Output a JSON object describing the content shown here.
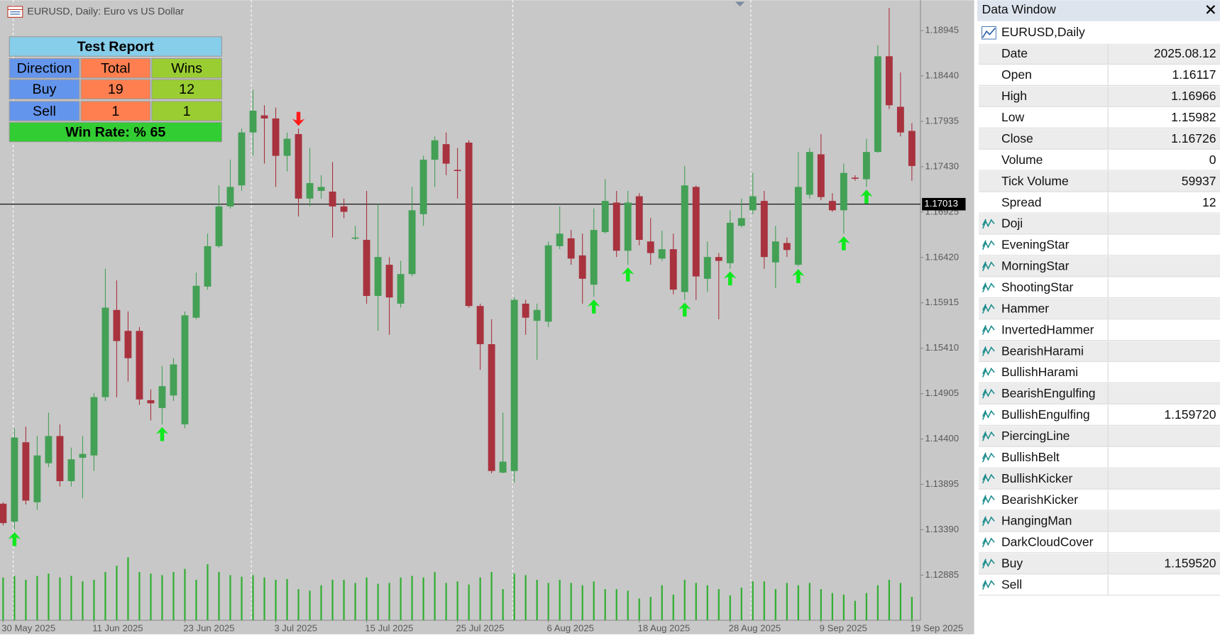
{
  "header": {
    "title": "EURUSD, Daily:  Euro vs US Dollar"
  },
  "chart_data": {
    "type": "candlestick",
    "categories": [
      "30 May 2025",
      null,
      null,
      null,
      null,
      null,
      null,
      null,
      "11 Jun 2025",
      null,
      null,
      null,
      null,
      null,
      null,
      null,
      "23 Jun 2025",
      null,
      null,
      null,
      null,
      null,
      null,
      null,
      "3 Jul 2025",
      null,
      null,
      null,
      null,
      null,
      null,
      null,
      "15 Jul 2025",
      null,
      null,
      null,
      null,
      null,
      null,
      null,
      "25 Jul 2025",
      null,
      null,
      null,
      null,
      null,
      null,
      null,
      "6 Aug 2025",
      null,
      null,
      null,
      null,
      null,
      null,
      null,
      "18 Aug 2025",
      null,
      null,
      null,
      null,
      null,
      null,
      null,
      "28 Aug 2025",
      null,
      null,
      null,
      null,
      null,
      null,
      null,
      "9 Sep 2025",
      null,
      null,
      null,
      null,
      null,
      null,
      null,
      "19 Sep 2025"
    ],
    "open": [
      1.1368,
      1.13481,
      1.14364,
      1.13696,
      1.1413,
      1.14433,
      1.13931,
      1.14191,
      1.14217,
      1.14866,
      1.15836,
      1.15603,
      1.15603,
      1.14832,
      1.14745,
      1.14884,
      1.14563,
      1.1575,
      1.16096,
      1.16546,
      1.16988,
      1.17222,
      1.17811,
      1.18001,
      1.17967,
      1.17551,
      1.17793,
      1.17075,
      1.17161,
      1.17153,
      1.16988,
      1.16633,
      1.16616,
      1.15992,
      1.16339,
      1.15906,
      1.16235,
      1.16902,
      1.17508,
      1.17681,
      1.17395,
      1.17698,
      1.1588,
      1.15455,
      1.14026,
      1.14044,
      1.15906,
      1.15715,
      1.15706,
      1.16546,
      1.16633,
      1.16443,
      1.16117,
      1.16702,
      1.17031,
      1.16495,
      1.17101,
      1.16598,
      1.16408,
      1.16512,
      1.16036,
      1.17205,
      1.16183,
      1.16425,
      1.16356,
      1.16772,
      1.16945,
      1.17049,
      1.16365,
      1.16581,
      1.16339,
      1.17118,
      1.17568,
      1.17049,
      1.16945,
      1.17309,
      1.17291,
      1.17594,
      1.18659,
      1.18097,
      1.17828
    ],
    "high": [
      1.13696,
      1.1452,
      1.14537,
      1.14433,
      1.14693,
      1.14563,
      1.14304,
      1.14433,
      1.1491,
      1.16295,
      1.16165,
      1.15819,
      1.15646,
      1.14953,
      1.15213,
      1.15299,
      1.15819,
      1.16252,
      1.16685,
      1.17222,
      1.17508,
      1.17854,
      1.18287,
      1.18114,
      1.18088,
      1.17811,
      1.17854,
      1.17638,
      1.17335,
      1.17482,
      1.17075,
      1.16772,
      1.17161,
      1.17014,
      1.16425,
      1.16382,
      1.17205,
      1.17551,
      1.17767,
      1.17811,
      1.17638,
      1.17724,
      1.15906,
      1.15732,
      1.14693,
      1.15975,
      1.15949,
      1.15906,
      1.16598,
      1.16988,
      1.16728,
      1.16685,
      1.16966,
      1.17291,
      1.17161,
      1.17161,
      1.17135,
      1.16858,
      1.1672,
      1.16685,
      1.17438,
      1.17222,
      1.16598,
      1.16469,
      1.16945,
      1.17075,
      1.17361,
      1.17161,
      1.16772,
      1.16642,
      1.17594,
      1.17638,
      1.17793,
      1.17135,
      1.17464,
      1.17335,
      1.17741,
      1.18781,
      1.19196,
      1.18478,
      1.17915
    ],
    "low": [
      1.13438,
      1.13394,
      1.13671,
      1.13611,
      1.14087,
      1.13871,
      1.13871,
      1.13741,
      1.14044,
      1.14823,
      1.14866,
      1.1504,
      1.1478,
      1.14607,
      1.14563,
      1.14823,
      1.1452,
      1.15732,
      1.16062,
      1.16529,
      1.16962,
      1.17161,
      1.17551,
      1.17464,
      1.17205,
      1.17378,
      1.16876,
      1.16988,
      1.17075,
      1.16642,
      1.16858,
      1.16616,
      1.15906,
      1.15603,
      1.15559,
      1.15862,
      1.16209,
      1.16772,
      1.17205,
      1.17335,
      1.17075,
      1.15862,
      1.1517,
      1.14018,
      1.14018,
      1.13914,
      1.15559,
      1.15282,
      1.15646,
      1.16512,
      1.16339,
      1.15906,
      1.15982,
      1.16685,
      1.16425,
      1.16339,
      1.16555,
      1.16339,
      1.16382,
      1.1601,
      1.15949,
      1.15949,
      1.16036,
      1.15732,
      1.16295,
      1.16754,
      1.16902,
      1.16295,
      1.16079,
      1.16425,
      1.16321,
      1.17075,
      1.17057,
      1.16928,
      1.16685,
      1.17274,
      1.17205,
      1.17586,
      1.18071,
      1.17767,
      1.17274
    ],
    "close": [
      1.13464,
      1.14416,
      1.13715,
      1.14217,
      1.14433,
      1.13931,
      1.14174,
      1.14234,
      1.14866,
      1.15862,
      1.1549,
      1.15299,
      1.1484,
      1.14797,
      1.14988,
      1.1523,
      1.15776,
      1.16105,
      1.16546,
      1.16988,
      1.17205,
      1.17811,
      1.18053,
      1.17967,
      1.17551,
      1.17741,
      1.17075,
      1.17248,
      1.17205,
      1.16988,
      1.16928,
      1.16642,
      1.15992,
      1.16425,
      1.15975,
      1.16235,
      1.16945,
      1.17508,
      1.17724,
      1.17464,
      1.17387,
      1.1588,
      1.15455,
      1.14044,
      1.14148,
      1.15949,
      1.1575,
      1.15836,
      1.16555,
      1.16685,
      1.16408,
      1.16183,
      1.16726,
      1.17049,
      1.16495,
      1.17031,
      1.16616,
      1.16469,
      1.16512,
      1.16062,
      1.17222,
      1.16209,
      1.16425,
      1.16382,
      1.16806,
      1.16858,
      1.17101,
      1.16425,
      1.16598,
      1.16503,
      1.17205,
      1.17594,
      1.17092,
      1.16945,
      1.17361,
      1.173,
      1.17594,
      1.18659,
      1.18114,
      1.17811,
      1.17438
    ],
    "volume": [
      66000,
      68400,
      62400,
      68400,
      72000,
      66000,
      68400,
      60000,
      62400,
      74400,
      84000,
      97200,
      74400,
      72000,
      69600,
      74400,
      79200,
      62400,
      86400,
      74400,
      69600,
      67200,
      69600,
      66000,
      62400,
      63600,
      48000,
      45600,
      54000,
      62400,
      62400,
      57600,
      66000,
      56400,
      57600,
      66000,
      68400,
      66000,
      74400,
      57600,
      60000,
      55200,
      66000,
      74400,
      48000,
      72000,
      69600,
      62400,
      57600,
      62400,
      57600,
      54000,
      59937,
      48000,
      48000,
      45600,
      33600,
      36000,
      54000,
      39600,
      62400,
      57600,
      54000,
      48000,
      38400,
      50400,
      60000,
      60000,
      48000,
      57600,
      54000,
      57600,
      48000,
      42000,
      39600,
      30000,
      42000,
      54000,
      62400,
      57600,
      36000
    ],
    "buy_signals": [
      null,
      1.13364,
      null,
      null,
      null,
      null,
      null,
      null,
      null,
      null,
      null,
      null,
      null,
      null,
      1.14533,
      null,
      null,
      null,
      null,
      null,
      null,
      null,
      null,
      null,
      null,
      null,
      null,
      null,
      null,
      null,
      null,
      null,
      null,
      null,
      null,
      null,
      null,
      null,
      null,
      null,
      null,
      null,
      null,
      null,
      null,
      null,
      null,
      null,
      null,
      null,
      null,
      null,
      1.15952,
      null,
      null,
      1.16309,
      null,
      null,
      null,
      null,
      1.15919,
      null,
      null,
      null,
      1.16265,
      null,
      null,
      null,
      null,
      null,
      1.16291,
      null,
      null,
      null,
      1.16655,
      null,
      1.17175,
      null,
      null,
      null,
      null
    ],
    "sell_signals": [
      null,
      null,
      null,
      null,
      null,
      null,
      null,
      null,
      null,
      null,
      null,
      null,
      null,
      null,
      null,
      null,
      null,
      null,
      null,
      null,
      null,
      null,
      null,
      null,
      null,
      null,
      1.17884,
      null,
      null,
      null,
      null,
      null,
      null,
      null,
      null,
      null,
      null,
      null,
      null,
      null,
      null,
      null,
      null,
      null,
      null,
      null,
      null,
      null,
      null,
      null,
      null,
      null,
      null,
      null,
      null,
      null,
      null,
      null,
      null,
      null,
      null,
      null,
      null,
      null,
      null,
      null,
      null,
      null,
      null,
      null,
      null,
      null,
      null,
      null,
      null,
      null,
      null,
      null,
      null,
      null,
      null
    ],
    "up_color": "#43a055",
    "down_color": "#a8323e",
    "volume_color": "#2fae2f",
    "ylim": [
      1.12383,
      1.19283
    ],
    "yticks": [
      1.18945,
      {
        "value": 1.1844,
        "label": "1.18440"
      },
      1.17935,
      {
        "value": 1.1743,
        "label": "1.17430"
      },
      1.16925,
      {
        "value": 1.1642,
        "label": "1.16420"
      },
      1.15915,
      {
        "value": 1.1541,
        "label": "1.15410"
      },
      1.14905,
      {
        "value": 1.144,
        "label": "1.14400"
      },
      1.13895,
      {
        "value": 1.1339,
        "label": "1.13390"
      },
      1.12885
    ],
    "current_price": 1.17013
  },
  "test_report": {
    "title": "Test Report",
    "columns": [
      "Direction",
      "Total",
      "Wins"
    ],
    "rows": [
      [
        "Buy",
        "19",
        "12"
      ],
      [
        "Sell",
        "1",
        "1"
      ]
    ],
    "win_rate": "Win Rate: %  65"
  },
  "data_window": {
    "title": "Data Window",
    "symbol": "EURUSD,Daily",
    "fields": [
      {
        "label": "Date",
        "value": "2025.08.12"
      },
      {
        "label": "Open",
        "value": "1.16117"
      },
      {
        "label": "High",
        "value": "1.16966"
      },
      {
        "label": "Low",
        "value": "1.15982"
      },
      {
        "label": "Close",
        "value": "1.16726"
      },
      {
        "label": "Volume",
        "value": "0"
      },
      {
        "label": "Tick Volume",
        "value": "59937"
      },
      {
        "label": "Spread",
        "value": "12"
      }
    ],
    "indicators": [
      {
        "name": "Doji"
      },
      {
        "name": "EveningStar"
      },
      {
        "name": "MorningStar"
      },
      {
        "name": "ShootingStar"
      },
      {
        "name": "Hammer"
      },
      {
        "name": "InvertedHammer"
      },
      {
        "name": "BearishHarami"
      },
      {
        "name": "BullishHarami"
      },
      {
        "name": "BearishEngulfing"
      },
      {
        "name": "BullishEngulfing",
        "value": "1.159720"
      },
      {
        "name": "PiercingLine"
      },
      {
        "name": "BullishBelt"
      },
      {
        "name": "BullishKicker"
      },
      {
        "name": "BearishKicker"
      },
      {
        "name": "HangingMan"
      },
      {
        "name": "DarkCloudCover"
      },
      {
        "name": "Buy",
        "value": "1.159520"
      },
      {
        "name": "Sell"
      }
    ]
  }
}
